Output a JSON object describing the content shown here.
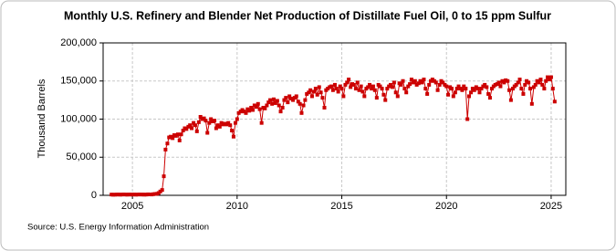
{
  "chart_data": {
    "type": "line",
    "title": "Monthly U.S. Refinery and Blender Net Production of Distillate Fuel Oil, 0 to 15 ppm Sulfur",
    "y_label": "Thousand Barrels",
    "source": "Source: U.S. Energy Information Administration",
    "xlim": [
      2003.6,
      2025.7
    ],
    "xticks": [
      2005,
      2010,
      2015,
      2020,
      2025
    ],
    "ylim": [
      0,
      200000
    ],
    "yticks": [
      0,
      {
        "value": 50000,
        "label": "50,000"
      },
      {
        "value": 100000,
        "label": "100,000"
      },
      {
        "value": 150000,
        "label": "150,000"
      },
      {
        "value": 200000,
        "label": "200,000"
      }
    ],
    "grid": true,
    "x": [
      2004.0,
      2004.08,
      2004.17,
      2004.25,
      2004.33,
      2004.42,
      2004.5,
      2004.58,
      2004.67,
      2004.75,
      2004.83,
      2004.92,
      2005.0,
      2005.08,
      2005.17,
      2005.25,
      2005.33,
      2005.42,
      2005.5,
      2005.58,
      2005.67,
      2005.75,
      2005.83,
      2005.92,
      2006.0,
      2006.08,
      2006.17,
      2006.25,
      2006.33,
      2006.42,
      2006.5,
      2006.58,
      2006.67,
      2006.75,
      2006.83,
      2006.92,
      2007.0,
      2007.08,
      2007.17,
      2007.25,
      2007.33,
      2007.42,
      2007.5,
      2007.58,
      2007.67,
      2007.75,
      2007.83,
      2007.92,
      2008.0,
      2008.08,
      2008.17,
      2008.25,
      2008.33,
      2008.42,
      2008.5,
      2008.58,
      2008.67,
      2008.75,
      2008.83,
      2008.92,
      2009.0,
      2009.08,
      2009.17,
      2009.25,
      2009.33,
      2009.42,
      2009.5,
      2009.58,
      2009.67,
      2009.75,
      2009.83,
      2009.92,
      2010.0,
      2010.08,
      2010.17,
      2010.25,
      2010.33,
      2010.42,
      2010.5,
      2010.58,
      2010.67,
      2010.75,
      2010.83,
      2010.92,
      2011.0,
      2011.08,
      2011.17,
      2011.25,
      2011.33,
      2011.42,
      2011.5,
      2011.58,
      2011.67,
      2011.75,
      2011.83,
      2011.92,
      2012.0,
      2012.08,
      2012.17,
      2012.25,
      2012.33,
      2012.42,
      2012.5,
      2012.58,
      2012.67,
      2012.75,
      2012.83,
      2012.92,
      2013.0,
      2013.08,
      2013.17,
      2013.25,
      2013.33,
      2013.42,
      2013.5,
      2013.58,
      2013.67,
      2013.75,
      2013.83,
      2013.92,
      2014.0,
      2014.08,
      2014.17,
      2014.25,
      2014.33,
      2014.42,
      2014.5,
      2014.58,
      2014.67,
      2014.75,
      2014.83,
      2014.92,
      2015.0,
      2015.08,
      2015.17,
      2015.25,
      2015.33,
      2015.42,
      2015.5,
      2015.58,
      2015.67,
      2015.75,
      2015.83,
      2015.92,
      2016.0,
      2016.08,
      2016.17,
      2016.25,
      2016.33,
      2016.42,
      2016.5,
      2016.58,
      2016.67,
      2016.75,
      2016.83,
      2016.92,
      2017.0,
      2017.08,
      2017.17,
      2017.25,
      2017.33,
      2017.42,
      2017.5,
      2017.58,
      2017.67,
      2017.75,
      2017.83,
      2017.92,
      2018.0,
      2018.08,
      2018.17,
      2018.25,
      2018.33,
      2018.42,
      2018.5,
      2018.58,
      2018.67,
      2018.75,
      2018.83,
      2018.92,
      2019.0,
      2019.08,
      2019.17,
      2019.25,
      2019.33,
      2019.42,
      2019.5,
      2019.58,
      2019.67,
      2019.75,
      2019.83,
      2019.92,
      2020.0,
      2020.08,
      2020.17,
      2020.25,
      2020.33,
      2020.42,
      2020.5,
      2020.58,
      2020.67,
      2020.75,
      2020.83,
      2020.92,
      2021.0,
      2021.08,
      2021.17,
      2021.25,
      2021.33,
      2021.42,
      2021.5,
      2021.58,
      2021.67,
      2021.75,
      2021.83,
      2021.92,
      2022.0,
      2022.08,
      2022.17,
      2022.25,
      2022.33,
      2022.42,
      2022.5,
      2022.58,
      2022.67,
      2022.75,
      2022.83,
      2022.92,
      2023.0,
      2023.08,
      2023.17,
      2023.25,
      2023.33,
      2023.42,
      2023.5,
      2023.58,
      2023.67,
      2023.75,
      2023.83,
      2023.92,
      2024.0,
      2024.08,
      2024.17,
      2024.25,
      2024.33,
      2024.42,
      2024.5,
      2024.58,
      2024.67,
      2024.75,
      2024.83,
      2024.92,
      2025.0,
      2025.08,
      2025.17
    ],
    "series": [
      {
        "color": "#cc0000",
        "values": [
          1000,
          800,
          900,
          1000,
          1100,
          900,
          1000,
          1200,
          1000,
          900,
          1100,
          1000,
          1000,
          1100,
          900,
          1000,
          1200,
          1000,
          1100,
          900,
          1000,
          1300,
          1200,
          1100,
          1500,
          1800,
          2000,
          3000,
          5000,
          7000,
          25000,
          60000,
          68000,
          76000,
          77000,
          75000,
          79000,
          78000,
          80000,
          72000,
          80000,
          85000,
          88000,
          87000,
          90000,
          92000,
          88000,
          95000,
          92000,
          84000,
          96000,
          103000,
          100000,
          101000,
          98000,
          82000,
          95000,
          100000,
          97000,
          98000,
          88000,
          92000,
          90000,
          95000,
          93000,
          94000,
          93000,
          95000,
          92000,
          85000,
          77000,
          95000,
          100000,
          108000,
          110000,
          112000,
          110000,
          108000,
          113000,
          111000,
          115000,
          112000,
          118000,
          116000,
          120000,
          113000,
          95000,
          115000,
          114000,
          118000,
          122000,
          125000,
          120000,
          126000,
          121000,
          124000,
          118000,
          110000,
          115000,
          125000,
          128000,
          122000,
          130000,
          127000,
          125000,
          128000,
          130000,
          123000,
          120000,
          108000,
          118000,
          125000,
          133000,
          135000,
          138000,
          130000,
          136000,
          140000,
          132000,
          142000,
          135000,
          128000,
          115000,
          138000,
          140000,
          142000,
          143000,
          138000,
          145000,
          140000,
          136000,
          143000,
          140000,
          130000,
          145000,
          148000,
          152000,
          142000,
          146000,
          145000,
          140000,
          148000,
          138000,
          143000,
          136000,
          130000,
          140000,
          142000,
          145000,
          140000,
          143000,
          138000,
          128000,
          145000,
          143000,
          140000,
          132000,
          125000,
          140000,
          143000,
          145000,
          142000,
          148000,
          135000,
          130000,
          147000,
          145000,
          150000,
          140000,
          135000,
          143000,
          146000,
          152000,
          148000,
          150000,
          145000,
          147000,
          150000,
          148000,
          152000,
          140000,
          133000,
          145000,
          150000,
          152000,
          150000,
          148000,
          138000,
          145000,
          150000,
          148000,
          145000,
          143000,
          132000,
          142000,
          140000,
          130000,
          135000,
          140000,
          143000,
          140000,
          138000,
          143000,
          140000,
          100000,
          130000,
          135000,
          140000,
          138000,
          142000,
          140000,
          135000,
          140000,
          143000,
          145000,
          142000,
          133000,
          128000,
          140000,
          143000,
          145000,
          146000,
          148000,
          143000,
          150000,
          148000,
          151000,
          150000,
          138000,
          125000,
          140000,
          143000,
          145000,
          148000,
          152000,
          140000,
          133000,
          145000,
          150000,
          148000,
          140000,
          120000,
          142000,
          145000,
          150000,
          148000,
          152000,
          145000,
          140000,
          150000,
          155000,
          152000,
          155000,
          140000,
          123000
        ]
      }
    ]
  }
}
